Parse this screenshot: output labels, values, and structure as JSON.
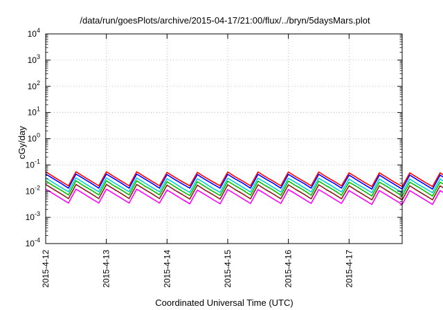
{
  "chart_data": {
    "type": "line",
    "title": "/data/run/goesPlots/archive/2015-04-17/21:00/flux/../bryn/5daysMars.plot",
    "xlabel": "Coordinated Universal Time (UTC)",
    "ylabel": "cGy/day",
    "yscale": "log",
    "ylim": [
      0.0001,
      10000
    ],
    "y_ticks": [
      {
        "base": "10",
        "exp": "4"
      },
      {
        "base": "10",
        "exp": "3"
      },
      {
        "base": "10",
        "exp": "2"
      },
      {
        "base": "10",
        "exp": "1"
      },
      {
        "base": "10",
        "exp": "0"
      },
      {
        "base": "10",
        "exp": "-1"
      },
      {
        "base": "10",
        "exp": "-2"
      },
      {
        "base": "10",
        "exp": "-3"
      },
      {
        "base": "10",
        "exp": "-4"
      }
    ],
    "x_ticks": [
      "2015-4-12",
      "2015-4-13",
      "2015-4-14",
      "2015-4-15",
      "2015-4-16",
      "2015-4-17"
    ],
    "xlim": [
      "2015-04-12 00:00",
      "2015-04-17 21:00"
    ],
    "grid": true,
    "sample_step_hours": 3,
    "series": [
      {
        "color": "#ff0000",
        "values": [
          0.055,
          0.036,
          0.024,
          0.016,
          0.055,
          0.036,
          0.024,
          0.016,
          0.055,
          0.036,
          0.024,
          0.016,
          0.055,
          0.036,
          0.024,
          0.016,
          0.052,
          0.034,
          0.023,
          0.016,
          0.052,
          0.034,
          0.023,
          0.016,
          0.054,
          0.035,
          0.024,
          0.016,
          0.054,
          0.035,
          0.024,
          0.016,
          0.054,
          0.035,
          0.024,
          0.016,
          0.054,
          0.035,
          0.024,
          0.016,
          0.05,
          0.033,
          0.022,
          0.015,
          0.05,
          0.033,
          0.022,
          0.015,
          0.05,
          0.033,
          0.022,
          0.015,
          0.05,
          0.033,
          0.022,
          0.015,
          0.05,
          0.033,
          0.022,
          0.015,
          0.05,
          0.033,
          0.022,
          0.015,
          0.05,
          0.033,
          0.022,
          0.015,
          0.05,
          0.033,
          0.022,
          0.015,
          0.048,
          0.032,
          0.021,
          0.014,
          0.048,
          0.032,
          0.021,
          0.014,
          0.048,
          0.032,
          0.021,
          0.014,
          0.048,
          0.032,
          0.021,
          0.014,
          0.05,
          0.033,
          0.022,
          0.015,
          0.05,
          0.033,
          0.022,
          0.015,
          0.05,
          0.033,
          0.022,
          0.015,
          0.05,
          0.033,
          0.022,
          0.015,
          0.05,
          0.033,
          0.022,
          0.015,
          0.05,
          0.033,
          0.022,
          0.015,
          0.05,
          0.033,
          0.022,
          0.015,
          0.05,
          0.033,
          0.022,
          0.015,
          0.05,
          0.033,
          0.022,
          0.015,
          0.05,
          0.033,
          0.022,
          0.015,
          0.05,
          0.033,
          0.022,
          0.015,
          0.05,
          0.033,
          0.022,
          0.015,
          0.05,
          0.033,
          0.022,
          0.015,
          0.05,
          0.033,
          0.022,
          0.015,
          0.048,
          0.032,
          0.021,
          0.014,
          0.048,
          0.032,
          0.021,
          0.014,
          0.048,
          0.032,
          0.021,
          0.014,
          0.048,
          0.032,
          0.021,
          0.014,
          0.05,
          0.033,
          0.022,
          0.015,
          0.05,
          0.033,
          0.022,
          0.015,
          0.05,
          0.033,
          0.022,
          0.015,
          0.05,
          0.033,
          0.022,
          0.015
        ]
      },
      {
        "color": "#0000ff",
        "values": [
          0.045,
          0.03,
          0.02,
          0.013,
          0.045,
          0.03,
          0.02,
          0.013,
          0.045,
          0.03,
          0.02,
          0.013,
          0.045,
          0.03,
          0.02,
          0.013,
          0.043,
          0.028,
          0.019,
          0.013,
          0.043,
          0.028,
          0.019,
          0.013,
          0.044,
          0.029,
          0.02,
          0.013,
          0.044,
          0.029,
          0.02,
          0.013,
          0.044,
          0.029,
          0.02,
          0.013,
          0.044,
          0.029,
          0.02,
          0.013,
          0.041,
          0.027,
          0.018,
          0.012,
          0.041,
          0.027,
          0.018,
          0.012,
          0.041,
          0.027,
          0.018,
          0.012,
          0.041,
          0.027,
          0.018,
          0.012,
          0.041,
          0.027,
          0.018,
          0.012,
          0.041,
          0.027,
          0.018,
          0.012,
          0.041,
          0.027,
          0.018,
          0.012,
          0.041,
          0.027,
          0.018,
          0.012,
          0.04,
          0.026,
          0.017,
          0.012,
          0.04,
          0.026,
          0.017,
          0.012,
          0.04,
          0.026,
          0.017,
          0.012,
          0.04,
          0.026,
          0.017,
          0.012,
          0.041,
          0.027,
          0.018,
          0.012,
          0.041,
          0.027,
          0.018,
          0.012,
          0.041,
          0.027,
          0.018,
          0.012,
          0.041,
          0.027,
          0.018,
          0.012,
          0.041,
          0.027,
          0.018,
          0.012,
          0.041,
          0.027,
          0.018,
          0.012,
          0.041,
          0.027,
          0.018,
          0.012,
          0.041,
          0.027,
          0.018,
          0.012,
          0.041,
          0.027,
          0.018,
          0.012,
          0.041,
          0.027,
          0.018,
          0.012,
          0.041,
          0.027,
          0.018,
          0.012,
          0.041,
          0.027,
          0.018,
          0.012,
          0.041,
          0.027,
          0.018,
          0.012,
          0.041,
          0.027,
          0.018,
          0.012,
          0.04,
          0.026,
          0.017,
          0.012,
          0.04,
          0.026,
          0.017,
          0.012,
          0.04,
          0.026,
          0.017,
          0.012,
          0.04,
          0.026,
          0.017,
          0.012,
          0.041,
          0.027,
          0.018,
          0.012,
          0.041,
          0.027,
          0.018,
          0.012,
          0.041,
          0.027,
          0.018,
          0.012,
          0.041,
          0.027,
          0.018,
          0.012
        ]
      },
      {
        "color": "#00d0d0",
        "values": [
          0.032,
          0.021,
          0.014,
          0.0095,
          0.032,
          0.021,
          0.014,
          0.0095,
          0.032,
          0.021,
          0.014,
          0.0095,
          0.032,
          0.021,
          0.014,
          0.0095,
          0.03,
          0.02,
          0.013,
          0.009,
          0.03,
          0.02,
          0.013,
          0.009,
          0.031,
          0.021,
          0.014,
          0.0093,
          0.031,
          0.021,
          0.014,
          0.0093,
          0.031,
          0.021,
          0.014,
          0.0093,
          0.031,
          0.021,
          0.014,
          0.0093,
          0.029,
          0.019,
          0.013,
          0.0087,
          0.029,
          0.019,
          0.013,
          0.0087,
          0.029,
          0.019,
          0.013,
          0.0087,
          0.029,
          0.019,
          0.013,
          0.0087,
          0.029,
          0.019,
          0.013,
          0.0087,
          0.029,
          0.019,
          0.013,
          0.0087,
          0.029,
          0.019,
          0.013,
          0.0087,
          0.029,
          0.019,
          0.013,
          0.0087,
          0.028,
          0.018,
          0.012,
          0.0083,
          0.028,
          0.018,
          0.012,
          0.0083,
          0.028,
          0.018,
          0.012,
          0.0083,
          0.028,
          0.018,
          0.012,
          0.0083,
          0.029,
          0.019,
          0.013,
          0.0087,
          0.029,
          0.019,
          0.013,
          0.0087,
          0.029,
          0.019,
          0.013,
          0.0087,
          0.029,
          0.019,
          0.013,
          0.0087,
          0.029,
          0.019,
          0.013,
          0.0087,
          0.029,
          0.019,
          0.013,
          0.0087,
          0.029,
          0.019,
          0.013,
          0.0087,
          0.029,
          0.019,
          0.013,
          0.0087,
          0.029,
          0.019,
          0.013,
          0.0087,
          0.029,
          0.019,
          0.013,
          0.0087,
          0.029,
          0.019,
          0.013,
          0.0087,
          0.029,
          0.019,
          0.013,
          0.0087,
          0.029,
          0.019,
          0.013,
          0.0087,
          0.029,
          0.019,
          0.013,
          0.0087,
          0.028,
          0.018,
          0.012,
          0.0083,
          0.028,
          0.018,
          0.012,
          0.0083,
          0.028,
          0.018,
          0.012,
          0.0083,
          0.028,
          0.018,
          0.012,
          0.0083,
          0.029,
          0.019,
          0.013,
          0.0087,
          0.029,
          0.019,
          0.013,
          0.0087,
          0.029,
          0.019,
          0.013,
          0.0087,
          0.029,
          0.019,
          0.013,
          0.0087
        ]
      },
      {
        "color": "#00c000",
        "values": [
          0.025,
          0.016,
          0.011,
          0.0072,
          0.025,
          0.016,
          0.011,
          0.0072,
          0.025,
          0.016,
          0.011,
          0.0072,
          0.025,
          0.016,
          0.011,
          0.0072,
          0.023,
          0.015,
          0.01,
          0.0068,
          0.023,
          0.015,
          0.01,
          0.0068,
          0.024,
          0.016,
          0.011,
          0.007,
          0.024,
          0.016,
          0.011,
          0.007,
          0.024,
          0.016,
          0.011,
          0.007,
          0.024,
          0.016,
          0.011,
          0.007,
          0.022,
          0.015,
          0.01,
          0.0065,
          0.022,
          0.015,
          0.01,
          0.0065,
          0.022,
          0.015,
          0.01,
          0.0065,
          0.022,
          0.015,
          0.01,
          0.0065,
          0.022,
          0.015,
          0.01,
          0.0065,
          0.022,
          0.015,
          0.01,
          0.0065,
          0.022,
          0.015,
          0.01,
          0.0065,
          0.022,
          0.015,
          0.01,
          0.0065,
          0.021,
          0.014,
          0.0093,
          0.0062,
          0.021,
          0.014,
          0.0093,
          0.0062,
          0.021,
          0.014,
          0.0093,
          0.0062,
          0.021,
          0.014,
          0.0093,
          0.0062,
          0.022,
          0.015,
          0.01,
          0.0065,
          0.022,
          0.015,
          0.01,
          0.0065,
          0.022,
          0.015,
          0.01,
          0.0065,
          0.022,
          0.015,
          0.01,
          0.0065,
          0.022,
          0.015,
          0.01,
          0.0065,
          0.022,
          0.015,
          0.01,
          0.0065,
          0.022,
          0.015,
          0.01,
          0.0065,
          0.022,
          0.015,
          0.01,
          0.0065,
          0.022,
          0.015,
          0.01,
          0.0065,
          0.022,
          0.015,
          0.01,
          0.0065,
          0.022,
          0.015,
          0.01,
          0.0065,
          0.022,
          0.015,
          0.01,
          0.0065,
          0.022,
          0.015,
          0.01,
          0.0065,
          0.021,
          0.014,
          0.0093,
          0.0062,
          0.021,
          0.014,
          0.0093,
          0.0062,
          0.021,
          0.014,
          0.0093,
          0.0062,
          0.021,
          0.014,
          0.0093,
          0.0062,
          0.022,
          0.015,
          0.01,
          0.0065,
          0.022,
          0.015,
          0.01,
          0.0065,
          0.022,
          0.015,
          0.01,
          0.0065,
          0.022,
          0.015,
          0.01,
          0.0065
        ]
      },
      {
        "color": "#8b1a1a",
        "values": [
          0.018,
          0.012,
          0.008,
          0.0052,
          0.018,
          0.012,
          0.008,
          0.0052,
          0.018,
          0.012,
          0.008,
          0.0052,
          0.018,
          0.012,
          0.008,
          0.0052,
          0.017,
          0.011,
          0.0075,
          0.005,
          0.017,
          0.011,
          0.0075,
          0.005,
          0.0175,
          0.0115,
          0.0078,
          0.0051,
          0.0175,
          0.0115,
          0.0078,
          0.0051,
          0.0175,
          0.0115,
          0.0078,
          0.0051,
          0.0175,
          0.0115,
          0.0078,
          0.0051,
          0.016,
          0.0105,
          0.007,
          0.0047,
          0.016,
          0.0105,
          0.007,
          0.0047,
          0.016,
          0.0105,
          0.007,
          0.0047,
          0.016,
          0.0105,
          0.007,
          0.0047,
          0.016,
          0.0105,
          0.007,
          0.0047,
          0.016,
          0.0105,
          0.007,
          0.0047,
          0.016,
          0.0105,
          0.007,
          0.0047,
          0.016,
          0.0105,
          0.007,
          0.0047,
          0.015,
          0.01,
          0.0067,
          0.0045,
          0.015,
          0.01,
          0.0067,
          0.0045,
          0.015,
          0.01,
          0.0067,
          0.0045,
          0.015,
          0.01,
          0.0067,
          0.0045,
          0.016,
          0.0105,
          0.007,
          0.0047,
          0.016,
          0.0105,
          0.007,
          0.0047,
          0.016,
          0.0105,
          0.007,
          0.0047,
          0.016,
          0.0105,
          0.007,
          0.0047,
          0.016,
          0.0105,
          0.007,
          0.0047,
          0.016,
          0.0105,
          0.007,
          0.0047,
          0.016,
          0.0105,
          0.007,
          0.0047,
          0.016,
          0.0105,
          0.007,
          0.0047,
          0.016,
          0.0105,
          0.007,
          0.0047,
          0.016,
          0.0105,
          0.007,
          0.0047,
          0.016,
          0.0105,
          0.007,
          0.0047,
          0.016,
          0.0105,
          0.007,
          0.0047,
          0.016,
          0.0105,
          0.007,
          0.0047,
          0.015,
          0.01,
          0.0067,
          0.0045,
          0.015,
          0.01,
          0.0067,
          0.0045,
          0.015,
          0.01,
          0.0067,
          0.0045,
          0.015,
          0.01,
          0.0067,
          0.0045,
          0.016,
          0.0105,
          0.007,
          0.0047,
          0.016,
          0.0105,
          0.007,
          0.0047,
          0.016,
          0.0105,
          0.007,
          0.0047,
          0.016,
          0.0105,
          0.007,
          0.0047
        ]
      },
      {
        "color": "#ff00ff",
        "values": [
          0.012,
          0.008,
          0.0053,
          0.0035,
          0.012,
          0.008,
          0.0053,
          0.0035,
          0.012,
          0.008,
          0.0053,
          0.0035,
          0.012,
          0.008,
          0.0053,
          0.0035,
          0.011,
          0.0074,
          0.0049,
          0.0033,
          0.011,
          0.0074,
          0.0049,
          0.0033,
          0.0115,
          0.0077,
          0.0051,
          0.0034,
          0.0115,
          0.0077,
          0.0051,
          0.0034,
          0.0115,
          0.0077,
          0.0051,
          0.0034,
          0.0115,
          0.0077,
          0.0051,
          0.0034,
          0.0105,
          0.007,
          0.0047,
          0.0031,
          0.0105,
          0.007,
          0.0047,
          0.0031,
          0.0105,
          0.007,
          0.0047,
          0.0031,
          0.0105,
          0.007,
          0.0047,
          0.0031,
          0.0105,
          0.007,
          0.0047,
          0.0031,
          0.0105,
          0.007,
          0.0047,
          0.0031,
          0.0105,
          0.007,
          0.0047,
          0.0031,
          0.0105,
          0.007,
          0.0047,
          0.0031,
          0.01,
          0.0067,
          0.0044,
          0.003,
          0.01,
          0.0067,
          0.0044,
          0.003,
          0.01,
          0.0067,
          0.0044,
          0.003,
          0.01,
          0.0067,
          0.0044,
          0.003,
          0.0105,
          0.007,
          0.0047,
          0.0031,
          0.0105,
          0.007,
          0.0047,
          0.0031,
          0.0105,
          0.007,
          0.0047,
          0.0031,
          0.0105,
          0.007,
          0.0047,
          0.0031,
          0.0105,
          0.007,
          0.0047,
          0.0031,
          0.0105,
          0.007,
          0.0047,
          0.0031,
          0.0105,
          0.007,
          0.0047,
          0.0031,
          0.0105,
          0.007,
          0.0047,
          0.0031,
          0.0105,
          0.007,
          0.0047,
          0.0031,
          0.0105,
          0.007,
          0.0047,
          0.0031,
          0.0105,
          0.007,
          0.0047,
          0.0031,
          0.0105,
          0.007,
          0.0047,
          0.0031,
          0.0105,
          0.007,
          0.0047,
          0.0031,
          0.01,
          0.0067,
          0.0044,
          0.003,
          0.01,
          0.0067,
          0.0044,
          0.003,
          0.01,
          0.0067,
          0.0044,
          0.003,
          0.01,
          0.0067,
          0.0044,
          0.003,
          0.0105,
          0.007,
          0.0047,
          0.0031,
          0.0105,
          0.007,
          0.0047,
          0.0031,
          0.0105,
          0.007,
          0.0047,
          0.0031,
          0.0105,
          0.007,
          0.0047,
          0.0031
        ]
      }
    ]
  }
}
